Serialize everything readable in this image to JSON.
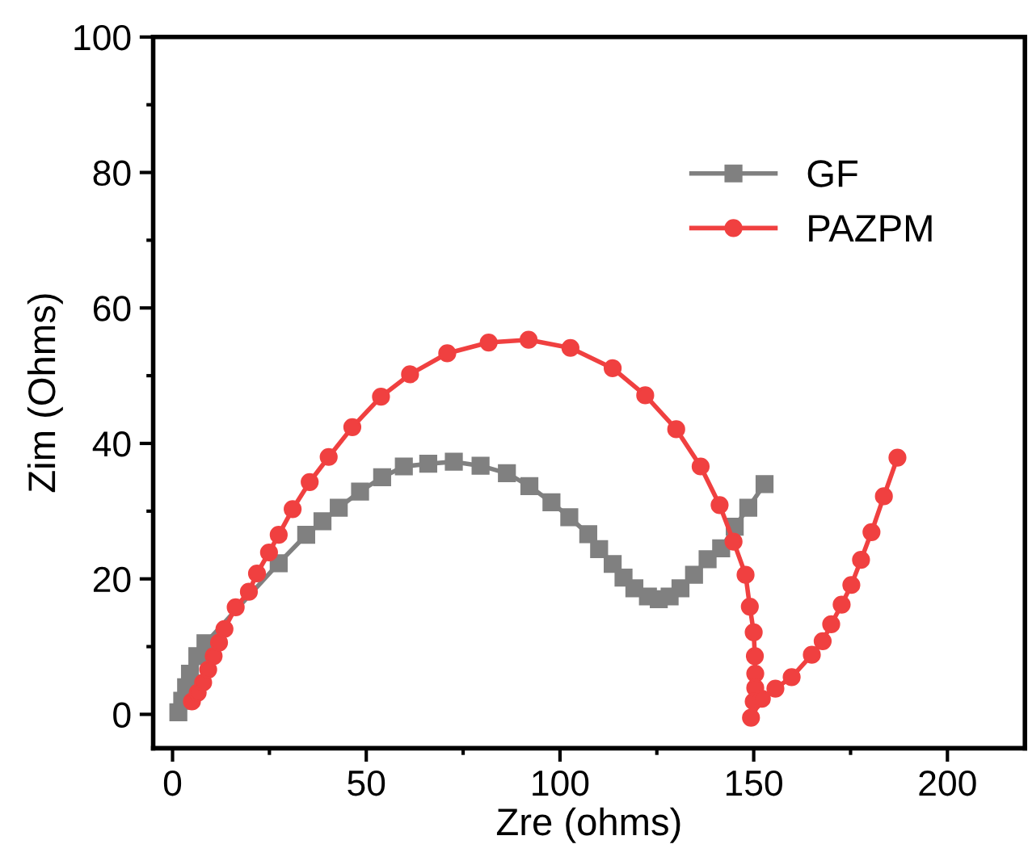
{
  "chart_data": {
    "type": "line",
    "xlabel": "Zre (ohms)",
    "ylabel": "Zim (Ohms)",
    "xlim": [
      -5,
      220
    ],
    "ylim": [
      -5,
      100
    ],
    "xticks": [
      0,
      50,
      100,
      150,
      200
    ],
    "yticks": [
      0,
      20,
      40,
      60,
      80,
      100
    ],
    "grid": false,
    "legend": "top right",
    "series": [
      {
        "name": "GF",
        "color": "#808080",
        "marker": "square",
        "x": [
          1.5,
          2.5,
          3.5,
          4.5,
          6.4,
          8.5,
          27.4,
          34.5,
          38.7,
          42.9,
          48.4,
          54.1,
          59.7,
          66,
          72.6,
          79.5,
          86.3,
          92.1,
          97.8,
          102.4,
          107.3,
          110.1,
          113.6,
          116.4,
          119.2,
          122.7,
          125.5,
          128.3,
          131.1,
          134.6,
          138.1,
          141.6,
          145.1,
          148.6,
          152.8
        ],
        "values": [
          0.3,
          2,
          4,
          6,
          8.6,
          10.5,
          22.3,
          26.5,
          28.5,
          30.5,
          32.9,
          35,
          36.6,
          37,
          37.3,
          36.7,
          35.6,
          33.7,
          31.3,
          29.1,
          26.6,
          24.4,
          22.2,
          20.2,
          18.6,
          17.4,
          17,
          17.4,
          18.6,
          20.6,
          22.9,
          24.5,
          27.7,
          30.5,
          34
        ]
      },
      {
        "name": "PAZPM",
        "color": "#f04040",
        "marker": "circle",
        "x": [
          5,
          6.5,
          7.9,
          9.2,
          10.6,
          12,
          13.4,
          16.3,
          19.7,
          21.8,
          24.9,
          27.4,
          31,
          35.4,
          40.3,
          46.4,
          53.8,
          61.3,
          70.9,
          81.6,
          91.9,
          102.7,
          113.6,
          122,
          130,
          136.3,
          141.2,
          144.8,
          147.9,
          149,
          150,
          150.3,
          150.4,
          150.4,
          150,
          149.3,
          152.1,
          155.6,
          159.8,
          165,
          167.8,
          170,
          172.7,
          175.2,
          177.7,
          180.4,
          183.6,
          187.1
        ],
        "values": [
          1.9,
          3.2,
          4.7,
          6.6,
          8.6,
          10.6,
          12.6,
          15.8,
          18.1,
          20.8,
          23.9,
          26.5,
          30.3,
          34.3,
          38,
          42.4,
          46.9,
          50.2,
          53.3,
          54.9,
          55.3,
          54.1,
          51.1,
          47.1,
          42.1,
          36.6,
          30.9,
          25.5,
          20.6,
          15.9,
          12.1,
          8.6,
          6,
          3.9,
          1.9,
          -0.5,
          2.3,
          3.8,
          5.5,
          8.8,
          10.8,
          13.3,
          16.2,
          19.1,
          22.8,
          26.9,
          32.2,
          37.9
        ]
      }
    ]
  }
}
